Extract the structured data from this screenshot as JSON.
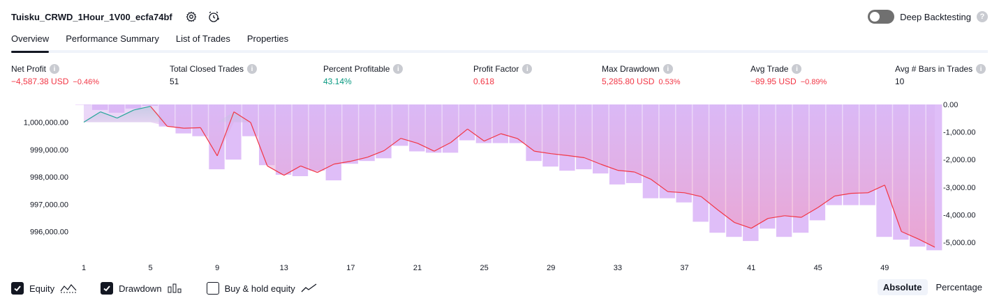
{
  "header": {
    "strategy_name": "Tuisku_CRWD_1Hour_1V00_ecfa74bf",
    "settings_icon": "gear-icon",
    "alert_icon": "alarm-clock-icon"
  },
  "deep_backtesting": {
    "label": "Deep Backtesting",
    "enabled": false,
    "help": "?"
  },
  "tabs": [
    {
      "label": "Overview",
      "active": true
    },
    {
      "label": "Performance Summary",
      "active": false
    },
    {
      "label": "List of Trades",
      "active": false
    },
    {
      "label": "Properties",
      "active": false
    }
  ],
  "metrics": [
    {
      "label": "Net Profit",
      "value": "−4,587.38 USD",
      "sub": "−0.46%",
      "color": "#f23645"
    },
    {
      "label": "Total Closed Trades",
      "value": "51",
      "sub": "",
      "color": "#131722"
    },
    {
      "label": "Percent Profitable",
      "value": "43.14%",
      "sub": "",
      "color": "#089981"
    },
    {
      "label": "Profit Factor",
      "value": "0.618",
      "sub": "",
      "color": "#f23645"
    },
    {
      "label": "Max Drawdown",
      "value": "5,285.80 USD",
      "sub": "0.53%",
      "color": "#f23645"
    },
    {
      "label": "Avg Trade",
      "value": "−89.95 USD",
      "sub": "−0.89%",
      "color": "#f23645"
    },
    {
      "label": "Avg # Bars in Trades",
      "value": "10",
      "sub": "",
      "color": "#131722"
    }
  ],
  "footer": {
    "legend": [
      {
        "label": "Equity",
        "checked": true,
        "icon": "equity-line-icon"
      },
      {
        "label": "Drawdown",
        "checked": true,
        "icon": "drawdown-bars-icon"
      },
      {
        "label": "Buy & hold equity",
        "checked": false,
        "icon": "buy-hold-line-icon"
      }
    ],
    "modes": [
      {
        "label": "Absolute",
        "active": true
      },
      {
        "label": "Percentage",
        "active": false
      }
    ]
  },
  "chart_data": {
    "type": "line",
    "x": [
      1,
      2,
      3,
      4,
      5,
      6,
      7,
      8,
      9,
      10,
      11,
      12,
      13,
      14,
      15,
      16,
      17,
      18,
      19,
      20,
      21,
      22,
      23,
      24,
      25,
      26,
      27,
      28,
      29,
      30,
      31,
      32,
      33,
      34,
      35,
      36,
      37,
      38,
      39,
      40,
      41,
      42,
      43,
      44,
      45,
      46,
      47,
      48,
      49,
      50,
      51,
      52
    ],
    "x_ticks": [
      "1",
      "5",
      "9",
      "13",
      "17",
      "21",
      "25",
      "29",
      "33",
      "37",
      "41",
      "45",
      "49"
    ],
    "equity_axis": {
      "ticks": [
        "1,000,000.00",
        "999,000.00",
        "998,000.00",
        "997,000.00",
        "996,000.00"
      ],
      "range": [
        995300,
        1000650
      ]
    },
    "drawdown_axis": {
      "ticks": [
        "0.00",
        "-1,000.00",
        "-2,000.00",
        "-3,000.00",
        "-4,000.00",
        "-5,000.00"
      ],
      "range": [
        -5300,
        0
      ]
    },
    "series": [
      {
        "name": "Equity",
        "values": [
          1000000,
          1000380,
          1000150,
          1000450,
          1000580,
          999850,
          999780,
          999800,
          998770,
          1000380,
          999990,
          998400,
          998060,
          998400,
          998160,
          998470,
          998570,
          998720,
          998960,
          999410,
          999230,
          998940,
          999260,
          999750,
          999310,
          999580,
          999400,
          998940,
          998850,
          998780,
          998700,
          998460,
          998240,
          998180,
          997910,
          997460,
          997420,
          997280,
          996790,
          996330,
          996120,
          996480,
          996580,
          996520,
          996880,
          997300,
          997400,
          997420,
          997700,
          996000,
          995730,
          995430
        ],
        "color": "#f23645"
      },
      {
        "name": "Drawdown",
        "values": [
          0,
          -200,
          -300,
          -150,
          -50,
          -800,
          -1050,
          -1150,
          -2350,
          -2000,
          -1150,
          -2200,
          -2550,
          -2600,
          -2400,
          -2750,
          -2150,
          -2050,
          -1950,
          -1500,
          -1700,
          -1750,
          -1750,
          -1300,
          -1400,
          -1400,
          -1400,
          -2050,
          -2250,
          -2400,
          -2350,
          -2500,
          -2900,
          -2850,
          -3400,
          -3400,
          -3550,
          -4250,
          -4650,
          -4800,
          -4950,
          -4500,
          -4800,
          -4650,
          -4200,
          -3650,
          -3650,
          -3650,
          -4800,
          -4900,
          -5150,
          -5286
        ],
        "color": "#d9b3f7"
      }
    ]
  }
}
